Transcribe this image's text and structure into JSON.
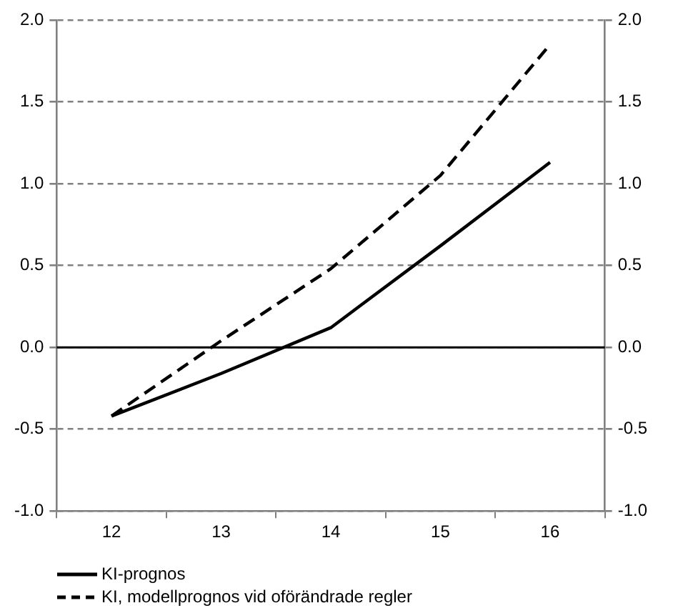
{
  "chart_data": {
    "type": "line",
    "categories": [
      "12",
      "13",
      "14",
      "15",
      "16"
    ],
    "series": [
      {
        "name": "KI-prognos",
        "color": "#000000",
        "values": [
          -0.42,
          -0.16,
          0.12,
          0.62,
          1.13
        ],
        "line_style": "solid"
      },
      {
        "name": "KI, modellprognos vid oförändrade regler",
        "color": "#000000",
        "values": [
          -0.42,
          0.04,
          0.48,
          1.05,
          1.85
        ],
        "line_style": "dashed"
      }
    ],
    "ylim": [
      -1,
      2
    ],
    "yticks": [
      {
        "value": -1,
        "label": "-1.0"
      },
      {
        "value": -0.5,
        "label": "-0.5"
      },
      {
        "value": 0,
        "label": "0.0"
      },
      {
        "value": 0.5,
        "label": "0.5"
      },
      {
        "value": 1,
        "label": "1.0"
      },
      {
        "value": 1.5,
        "label": "1.5"
      },
      {
        "value": 2,
        "label": "2.0"
      }
    ],
    "y2lim": [
      -1,
      2
    ],
    "y2ticks": [
      {
        "value": -1,
        "label": "-1.0"
      },
      {
        "value": -0.5,
        "label": "-0.5"
      },
      {
        "value": 0,
        "label": "0.0"
      },
      {
        "value": 0.5,
        "label": "0.5"
      },
      {
        "value": 1,
        "label": "1.0"
      },
      {
        "value": 1.5,
        "label": "1.5"
      },
      {
        "value": 2,
        "label": "2.0"
      }
    ],
    "grid": "y",
    "marker": "none",
    "legend": "bottom left",
    "ref_lines": [
      {
        "axis": "y",
        "value": 0,
        "color": "#000000",
        "line_style": "solid"
      }
    ]
  }
}
